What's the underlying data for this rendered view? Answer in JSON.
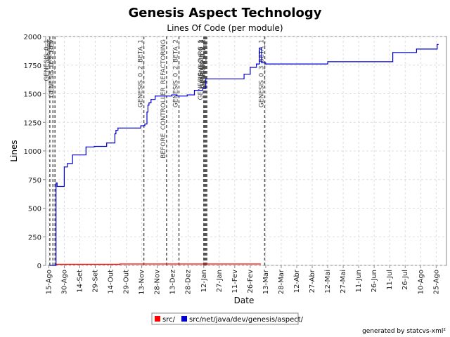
{
  "chart_data": {
    "type": "line",
    "title": "Genesis Aspect Technology",
    "subtitle": "Lines Of Code (per module)",
    "xlabel": "Date",
    "ylabel": "Lines",
    "ylim": [
      0,
      2000
    ],
    "yticks": [
      0,
      250,
      500,
      750,
      1000,
      1250,
      1500,
      1750,
      2000
    ],
    "xlim": [
      "2004-08-12",
      "2005-09-04"
    ],
    "xticks": [
      {
        "date": "2004-08-15",
        "label": "15-Ago"
      },
      {
        "date": "2004-08-30",
        "label": "30-Ago"
      },
      {
        "date": "2004-09-14",
        "label": "14-Set"
      },
      {
        "date": "2004-09-29",
        "label": "29-Set"
      },
      {
        "date": "2004-10-14",
        "label": "14-Out"
      },
      {
        "date": "2004-10-29",
        "label": "29-Out"
      },
      {
        "date": "2004-11-13",
        "label": "13-Nov"
      },
      {
        "date": "2004-11-28",
        "label": "28-Nov"
      },
      {
        "date": "2004-12-13",
        "label": "13-Dez"
      },
      {
        "date": "2004-12-28",
        "label": "28-Dez"
      },
      {
        "date": "2005-01-12",
        "label": "12-Jan"
      },
      {
        "date": "2005-01-27",
        "label": "27-Jan"
      },
      {
        "date": "2005-02-11",
        "label": "11-Fev"
      },
      {
        "date": "2005-02-26",
        "label": "26-Fev"
      },
      {
        "date": "2005-03-13",
        "label": "13-Mar"
      },
      {
        "date": "2005-03-28",
        "label": "28-Mar"
      },
      {
        "date": "2005-04-12",
        "label": "12-Abr"
      },
      {
        "date": "2005-04-27",
        "label": "27-Abr"
      },
      {
        "date": "2005-05-12",
        "label": "12-Mai"
      },
      {
        "date": "2005-05-27",
        "label": "27-Mai"
      },
      {
        "date": "2005-06-11",
        "label": "11-Jun"
      },
      {
        "date": "2005-06-26",
        "label": "26-Jun"
      },
      {
        "date": "2005-07-11",
        "label": "11-Jul"
      },
      {
        "date": "2005-07-26",
        "label": "26-Jul"
      },
      {
        "date": "2005-08-10",
        "label": "10-Ago"
      },
      {
        "date": "2005-08-25",
        "label": "25-Ago"
      }
    ],
    "grid": true,
    "legend_position": "bottom",
    "series": [
      {
        "name": "src/",
        "color": "#ff0000",
        "step": true,
        "points": [
          {
            "x": "2004-08-22",
            "y": 10
          },
          {
            "x": "2004-10-23",
            "y": 12
          },
          {
            "x": "2005-03-08",
            "y": 12
          }
        ]
      },
      {
        "name": "src/net/java/dev/genesis/aspect/",
        "color": "#0000cc",
        "step": true,
        "points": [
          {
            "x": "2004-08-16",
            "y": 0
          },
          {
            "x": "2004-08-22",
            "y": 720
          },
          {
            "x": "2004-08-23",
            "y": 690
          },
          {
            "x": "2004-08-30",
            "y": 860
          },
          {
            "x": "2004-09-02",
            "y": 890
          },
          {
            "x": "2004-09-07",
            "y": 965
          },
          {
            "x": "2004-09-20",
            "y": 1035
          },
          {
            "x": "2004-09-28",
            "y": 1040
          },
          {
            "x": "2004-10-10",
            "y": 1070
          },
          {
            "x": "2004-10-18",
            "y": 1150
          },
          {
            "x": "2004-10-19",
            "y": 1180
          },
          {
            "x": "2004-10-21",
            "y": 1200
          },
          {
            "x": "2004-11-12",
            "y": 1220
          },
          {
            "x": "2004-11-16",
            "y": 1235
          },
          {
            "x": "2004-11-18",
            "y": 1340
          },
          {
            "x": "2004-11-19",
            "y": 1400
          },
          {
            "x": "2004-11-20",
            "y": 1420
          },
          {
            "x": "2004-11-22",
            "y": 1450
          },
          {
            "x": "2004-11-26",
            "y": 1480
          },
          {
            "x": "2004-12-12",
            "y": 1490
          },
          {
            "x": "2004-12-17",
            "y": 1480
          },
          {
            "x": "2004-12-27",
            "y": 1490
          },
          {
            "x": "2005-01-03",
            "y": 1530
          },
          {
            "x": "2005-01-11",
            "y": 1545
          },
          {
            "x": "2005-01-14",
            "y": 1630
          },
          {
            "x": "2005-02-20",
            "y": 1670
          },
          {
            "x": "2005-02-26",
            "y": 1730
          },
          {
            "x": "2005-03-04",
            "y": 1760
          },
          {
            "x": "2005-03-07",
            "y": 1900
          },
          {
            "x": "2005-03-09",
            "y": 1770
          },
          {
            "x": "2005-03-13",
            "y": 1760
          },
          {
            "x": "2005-05-12",
            "y": 1780
          },
          {
            "x": "2005-07-14",
            "y": 1860
          },
          {
            "x": "2005-08-06",
            "y": 1890
          },
          {
            "x": "2005-08-26",
            "y": 1930
          },
          {
            "x": "2005-08-27",
            "y": 1930
          }
        ]
      }
    ],
    "markers": [
      {
        "x": "2004-08-16",
        "label": "GENESIS_0_1"
      },
      {
        "x": "2004-08-19",
        "label": "IMPORT"
      },
      {
        "x": "2004-08-21",
        "label": "GENESIS_0_2_DEV"
      },
      {
        "x": "2004-11-15",
        "label": "GENESIS_0_2_BETA_1"
      },
      {
        "x": "2004-12-07",
        "label": "BEFORE_CONTROLLER_REFACTORING"
      },
      {
        "x": "2004-12-19",
        "label": "GENESIS_0_2_BETA_2"
      },
      {
        "x": "2005-01-12",
        "label": "GENESIS_0_2_RC_1"
      },
      {
        "x": "2005-01-13",
        "label": "GENESIS_0_2"
      },
      {
        "x": "2005-01-14",
        "label": "GENESIS_0_2_1"
      },
      {
        "x": "2005-01-15",
        "label": "GENESIS_0_2_2"
      },
      {
        "x": "2005-03-12",
        "label": "GENESIS_0_3_BETA_1"
      }
    ]
  },
  "legend": {
    "items": [
      {
        "label": "src/",
        "color": "#ff0000"
      },
      {
        "label": "src/net/java/dev/genesis/aspect/",
        "color": "#0000cc"
      }
    ]
  },
  "footer": "generated by statcvs-xml²"
}
